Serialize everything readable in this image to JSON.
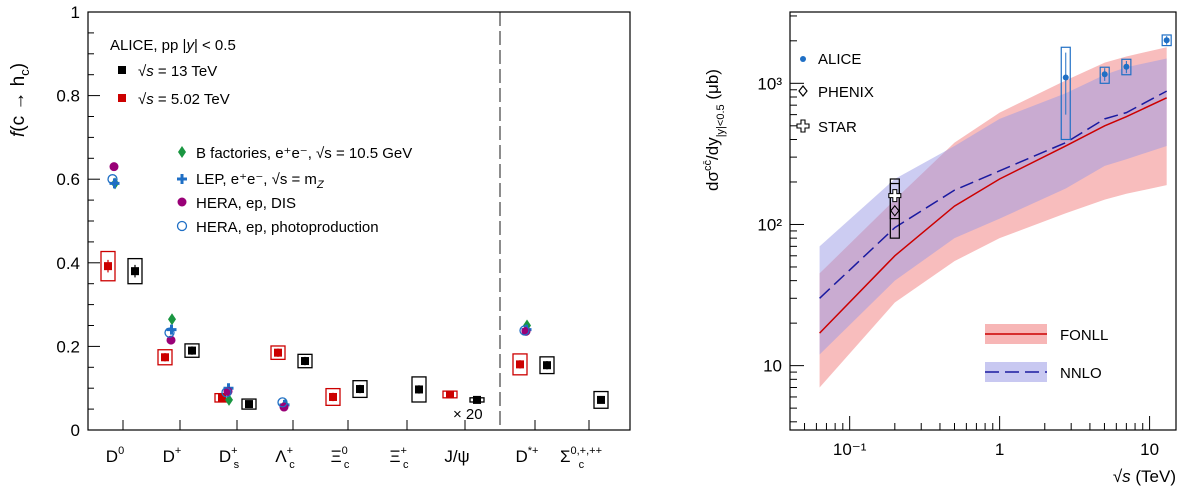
{
  "chart_data": [
    {
      "type": "scatter",
      "ylabel_prefix": "f",
      "ylabel_rest": "(c → h",
      "ylabel_sub": "c",
      "ylabel_close": ")",
      "ylim": [
        0,
        1
      ],
      "yticks": [
        0,
        0.2,
        0.4,
        0.6,
        0.8,
        1
      ],
      "ytick_labels": [
        "0",
        "0.2",
        "0.4",
        "0.6",
        "0.8",
        "1"
      ],
      "grid": false,
      "categories": [
        {
          "base": "D",
          "sup": "0",
          "sub": ""
        },
        {
          "base": "D",
          "sup": "+",
          "sub": ""
        },
        {
          "base": "D",
          "sup": "+",
          "sub": "s"
        },
        {
          "base": "Λ",
          "sup": "+",
          "sub": "c"
        },
        {
          "base": "Ξ",
          "sup": "0",
          "sub": "c"
        },
        {
          "base": "Ξ",
          "sup": "+",
          "sub": "c"
        },
        {
          "base": "J/ψ",
          "sup": "",
          "sub": ""
        },
        {
          "base": "D",
          "sup": "*+",
          "sub": ""
        },
        {
          "base": "Σ",
          "sup": "0,+,++",
          "sub": "c"
        }
      ],
      "divider_after_index": 6,
      "annotation": "× 20",
      "legend_top": {
        "header_prefix": "ALICE, pp |",
        "header_y": "y",
        "header_suffix": "| < 0.5",
        "entries": [
          {
            "label_prefix": "√",
            "label_s": "s",
            "label_suffix": " = 13 TeV",
            "color": "#000000"
          },
          {
            "label_prefix": "√",
            "label_s": "s",
            "label_suffix": " = 5.02 TeV",
            "color": "#cc0000"
          }
        ]
      },
      "legend_mid": [
        {
          "label": "B factories, e⁺e⁻, √s = 10.5 GeV",
          "marker": "diamond",
          "color": "#1a9641"
        },
        {
          "label": "LEP, e⁺e⁻, √s = m",
          "label_sub": "Z",
          "marker": "cross",
          "color": "#1f6fc5"
        },
        {
          "label": "HERA, ep, DIS",
          "marker": "circle",
          "color": "#990077"
        },
        {
          "label": "HERA, ep, photoproduction",
          "marker": "open-circle",
          "color": "#1f6fc5"
        }
      ],
      "series": [
        {
          "name": "√s = 13 TeV",
          "color": "#000000",
          "values": [
            0.38,
            0.19,
            0.062,
            0.165,
            0.098,
            0.097,
            0.072,
            0.155,
            0.072
          ],
          "stat_err": [
            0.015,
            0.01,
            0.005,
            0.01,
            0.01,
            0.01,
            0.004,
            0.01,
            0.008
          ],
          "sys_err": [
            0.03,
            0.016,
            0.012,
            0.016,
            0.02,
            0.03,
            0.005,
            0.02,
            0.02
          ]
        },
        {
          "name": "√s = 5.02 TeV",
          "color": "#cc0000",
          "values": [
            0.392,
            0.174,
            0.077,
            0.185,
            0.079,
            null,
            0.085,
            0.157,
            null
          ],
          "stat_err": [
            0.015,
            0.01,
            0.005,
            0.01,
            0.01,
            null,
            0.004,
            0.01,
            null
          ],
          "sys_err": [
            0.035,
            0.018,
            0.01,
            0.016,
            0.02,
            null,
            0.008,
            0.025,
            null
          ]
        },
        {
          "name": "B factories, e⁺e⁻, √s = 10.5 GeV",
          "color": "#1a9641",
          "marker": "diamond",
          "values": [
            0.59,
            0.265,
            0.072,
            0.06,
            null,
            null,
            null,
            0.25,
            null
          ]
        },
        {
          "name": "LEP, e⁺e⁻, √s = mZ",
          "color": "#1f6fc5",
          "marker": "cross",
          "values": [
            0.59,
            0.24,
            0.1,
            0.06,
            null,
            null,
            null,
            0.24,
            null
          ]
        },
        {
          "name": "HERA, ep, DIS",
          "color": "#990077",
          "marker": "circle",
          "values": [
            0.63,
            0.215,
            0.092,
            0.055,
            null,
            null,
            null,
            0.236,
            null
          ]
        },
        {
          "name": "HERA, ep, photoproduction",
          "color": "#1f6fc5",
          "marker": "open-circle",
          "values": [
            0.6,
            0.233,
            0.09,
            0.066,
            null,
            null,
            null,
            0.238,
            null
          ]
        }
      ]
    },
    {
      "type": "line",
      "xscale": "log",
      "yscale": "log",
      "xlim": [
        0.04,
        15
      ],
      "ylim": [
        3.5,
        3200
      ],
      "xticks": [
        0.1,
        1,
        10
      ],
      "xtick_labels": [
        "10⁻¹",
        "1",
        "10"
      ],
      "yticks": [
        10,
        100,
        1000
      ],
      "ytick_labels": [
        "10",
        "10²",
        "10³"
      ],
      "xlabel_prefix": "√",
      "xlabel_s": "s",
      "xlabel_suffix": " (TeV)",
      "ylabel_main": "dσ",
      "ylabel_sup": "cc̄",
      "ylabel_mid": "/dy",
      "ylabel_sub": "|y|<0.5",
      "ylabel_unit": " (μb)",
      "grid": false,
      "legend_top": [
        {
          "label": "ALICE",
          "marker": "dot",
          "color": "#1f6fc5"
        },
        {
          "label": "PHENIX",
          "marker": "open-diamond",
          "color": "#000000"
        },
        {
          "label": "STAR",
          "marker": "open-cross",
          "color": "#000000"
        }
      ],
      "legend_bottom": [
        {
          "label": "FONLL",
          "color": "#cc0000",
          "band_color": "#f7b6b6",
          "style": "solid"
        },
        {
          "label": "NNLO",
          "color": "#1a1aa0",
          "band_color": "#9a9ae6",
          "style": "dashed"
        }
      ],
      "fonll": {
        "x": [
          0.063,
          0.2,
          0.5,
          1,
          2.76,
          5.02,
          7,
          13
        ],
        "central": [
          17,
          60,
          135,
          210,
          360,
          500,
          580,
          790
        ],
        "low": [
          7,
          28,
          55,
          80,
          120,
          150,
          165,
          190
        ],
        "high": [
          45,
          150,
          380,
          620,
          1050,
          1400,
          1550,
          1800
        ]
      },
      "nnlo": {
        "x": [
          0.063,
          0.2,
          0.5,
          1,
          2.76,
          5.02,
          7,
          13
        ],
        "central": [
          30,
          95,
          175,
          240,
          380,
          560,
          620,
          880
        ],
        "low": [
          12,
          40,
          80,
          110,
          180,
          260,
          290,
          360
        ],
        "high": [
          70,
          210,
          360,
          560,
          850,
          1150,
          1300,
          1500
        ]
      },
      "series": [
        {
          "name": "ALICE",
          "color": "#1f6fc5",
          "x": [
            2.76,
            5.02,
            7,
            13
          ],
          "y": [
            1100,
            1160,
            1310,
            2020
          ],
          "err_low": [
            600,
            1040,
            1180,
            1880
          ],
          "err_high": [
            1650,
            1280,
            1440,
            2160
          ],
          "box_low": [
            400,
            1000,
            1150,
            1850
          ],
          "box_high": [
            1800,
            1300,
            1480,
            2200
          ]
        },
        {
          "name": "PHENIX",
          "color": "#000000",
          "x": [
            0.2
          ],
          "y": [
            125
          ],
          "box_low": [
            80
          ],
          "box_high": [
            195
          ]
        },
        {
          "name": "STAR",
          "color": "#000000",
          "x": [
            0.2
          ],
          "y": [
            160
          ],
          "box_low": [
            110
          ],
          "box_high": [
            210
          ]
        }
      ]
    }
  ]
}
